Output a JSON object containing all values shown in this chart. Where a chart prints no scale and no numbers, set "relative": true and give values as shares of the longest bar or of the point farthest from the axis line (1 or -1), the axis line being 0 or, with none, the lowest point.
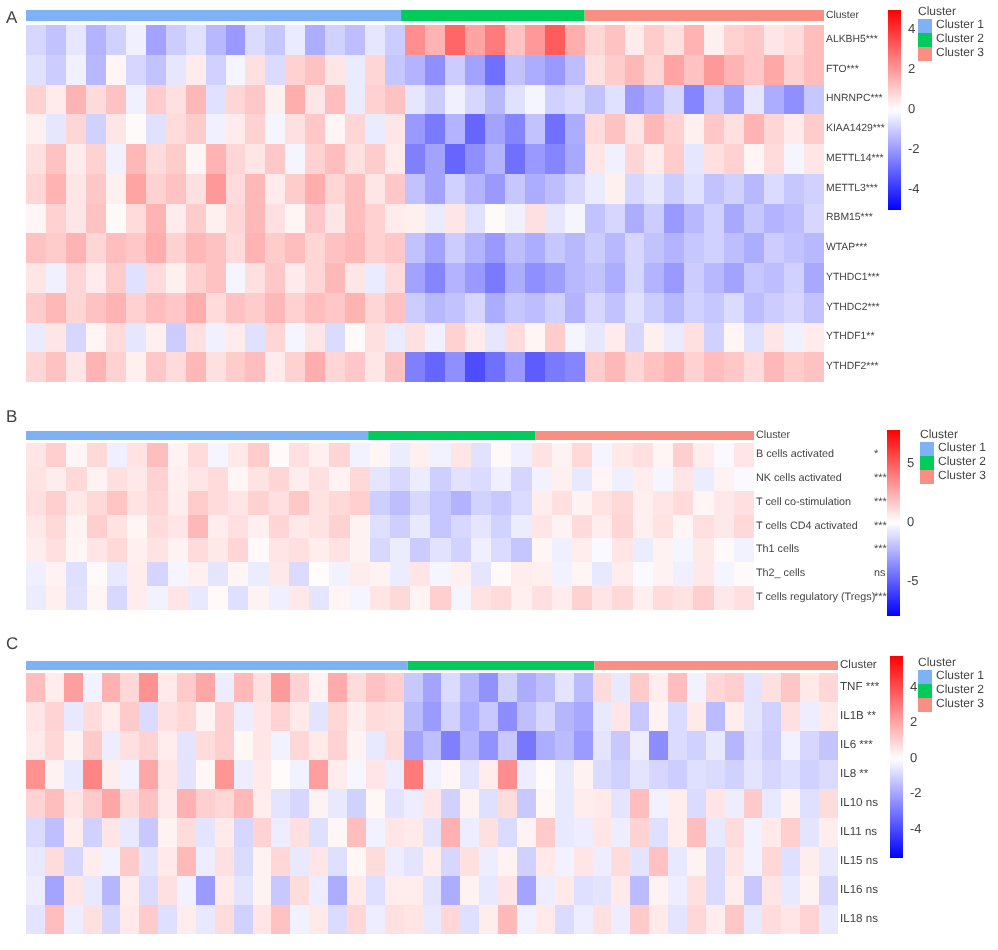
{
  "chart_data": [
    {
      "type": "bar",
      "orientation": "horizontal",
      "stacked": true,
      "relative": true,
      "title": "A",
      "categories": [
        "Cluster"
      ],
      "legend": "top right",
      "legend_title": "Cluster",
      "series": [
        {
          "name": "Cluster 1",
          "color": "#7fb1f5",
          "values": [
            0.47
          ]
        },
        {
          "name": "Cluster 2",
          "color": "#00cc5c",
          "values": [
            0.23
          ]
        },
        {
          "name": "Cluster 3",
          "color": "#f98f82",
          "values": [
            0.3
          ]
        }
      ]
    },
    {
      "type": "heatmap",
      "categories": [
        null,
        null,
        null,
        null,
        null,
        null,
        null,
        null,
        null,
        null,
        null,
        null,
        null,
        null,
        null,
        null,
        null,
        null,
        null,
        null,
        null,
        null,
        null,
        null,
        null,
        null,
        null,
        null,
        null,
        null,
        null,
        null,
        null,
        null,
        null,
        null,
        null,
        null,
        null,
        null
      ],
      "y_categories": [
        "ALKBH5***",
        "FTO***",
        "HNRNPC***",
        "KIAA1429***",
        "METTL14***",
        "METTL3***",
        "RBM15***",
        "WTAP***",
        "YTHDC1***",
        "YTHDC2***",
        "YTHDF1**",
        "YTHDF2***"
      ],
      "clim": [
        -5,
        5
      ],
      "cticks": [
        4,
        2,
        0,
        -2,
        -4
      ],
      "cells": [
        [
          -0.8,
          -1.2,
          -0.5,
          -1.5,
          -0.9,
          -0.3,
          -1.8,
          -1.0,
          -0.6,
          -1.4,
          -2.0,
          -0.7,
          -1.1,
          -0.4,
          -1.6,
          -0.9,
          -1.3,
          -0.5,
          -1.0,
          2.2,
          1.5,
          3.0,
          1.8,
          2.6,
          1.2,
          2.0,
          3.2,
          1.6,
          0.8,
          1.2,
          0.4,
          1.0,
          0.6,
          1.5,
          0.3,
          0.9,
          1.1,
          0.5,
          0.7,
          1.3
        ],
        [
          -0.6,
          -1.0,
          -0.3,
          -1.4,
          0.2,
          -0.8,
          -1.2,
          -0.5,
          0.4,
          -0.9,
          -0.2,
          0.6,
          -0.7,
          0.9,
          1.2,
          0.5,
          -0.4,
          0.8,
          -1.1,
          -1.5,
          -2.2,
          -1.0,
          -1.8,
          -2.8,
          -1.2,
          -1.6,
          -2.0,
          -1.3,
          0.6,
          1.0,
          1.4,
          0.8,
          1.8,
          1.2,
          2.0,
          1.5,
          1.1,
          1.7,
          0.9,
          1.3
        ],
        [
          0.9,
          0.4,
          1.5,
          0.7,
          1.2,
          -0.3,
          1.0,
          0.6,
          1.4,
          -0.6,
          0.8,
          1.1,
          0.3,
          1.6,
          0.5,
          1.3,
          -0.4,
          0.9,
          1.2,
          -0.5,
          -1.0,
          -0.3,
          -0.8,
          -1.4,
          -0.6,
          -0.2,
          -0.9,
          -0.7,
          -1.2,
          -0.6,
          -2.0,
          -1.5,
          -0.8,
          -2.4,
          -1.0,
          -1.8,
          -0.5,
          -1.6,
          -2.2,
          -1.1
        ],
        [
          0.3,
          -0.5,
          0.8,
          -0.9,
          0.5,
          0.1,
          -0.6,
          0.7,
          1.0,
          -0.3,
          0.4,
          0.9,
          -0.2,
          0.6,
          1.1,
          0.2,
          0.8,
          -0.4,
          0.5,
          -2.0,
          -2.6,
          -1.5,
          -3.0,
          -1.8,
          -2.4,
          -1.2,
          -2.8,
          -1.6,
          0.7,
          1.2,
          0.5,
          1.4,
          0.9,
          0.3,
          1.1,
          0.6,
          1.5,
          0.8,
          0.4,
          1.0
        ],
        [
          0.6,
          1.2,
          0.4,
          0.9,
          -0.3,
          1.4,
          0.7,
          1.0,
          0.2,
          1.5,
          0.8,
          0.5,
          1.1,
          -0.2,
          0.9,
          1.3,
          0.6,
          1.0,
          0.4,
          -2.5,
          -1.8,
          -3.0,
          -2.2,
          -1.5,
          -2.8,
          -2.0,
          -2.4,
          -1.7,
          0.5,
          -0.3,
          0.8,
          0.4,
          1.0,
          -0.5,
          0.6,
          0.9,
          0.2,
          0.7,
          -0.2,
          0.5
        ],
        [
          0.8,
          1.5,
          0.5,
          1.1,
          0.3,
          1.8,
          0.9,
          1.2,
          0.6,
          2.0,
          0.7,
          1.4,
          0.4,
          1.0,
          1.6,
          0.8,
          1.3,
          0.5,
          1.1,
          -1.2,
          -1.8,
          -0.9,
          -1.5,
          -2.0,
          -1.1,
          -1.6,
          -1.3,
          -0.8,
          -0.4,
          0.3,
          -0.8,
          -0.5,
          -1.0,
          -0.6,
          -1.2,
          -0.9,
          -1.4,
          -0.7,
          -1.1,
          -0.9
        ],
        [
          0.2,
          0.9,
          0.5,
          1.2,
          0.1,
          0.7,
          1.5,
          0.4,
          1.0,
          0.3,
          0.8,
          1.4,
          0.6,
          0.2,
          1.1,
          0.5,
          1.3,
          0.9,
          0.4,
          0.3,
          -0.4,
          0.5,
          -0.6,
          0.1,
          -0.3,
          0.6,
          -0.5,
          -0.2,
          -1.2,
          -0.8,
          -1.6,
          -1.0,
          -2.0,
          -1.4,
          -0.9,
          -1.7,
          -1.1,
          -1.5,
          -1.3,
          -0.8
        ],
        [
          1.2,
          1.0,
          1.5,
          0.8,
          1.3,
          1.1,
          1.6,
          0.9,
          1.4,
          1.2,
          0.7,
          1.5,
          1.0,
          1.3,
          0.8,
          1.2,
          1.4,
          0.9,
          1.1,
          -1.2,
          -1.8,
          -1.0,
          -1.5,
          -2.0,
          -1.3,
          -1.6,
          -1.1,
          -1.4,
          -1.0,
          -1.4,
          -0.8,
          -1.2,
          -1.5,
          -1.1,
          -0.9,
          -1.3,
          -1.6,
          -1.0,
          -1.2,
          -1.4
        ],
        [
          0.5,
          -0.3,
          0.8,
          0.4,
          1.0,
          -0.6,
          0.7,
          0.3,
          0.9,
          1.2,
          -0.2,
          0.6,
          1.1,
          0.4,
          0.8,
          1.4,
          0.5,
          -0.4,
          0.7,
          -1.8,
          -2.4,
          -1.5,
          -2.0,
          -2.6,
          -1.6,
          -2.2,
          -1.9,
          -1.4,
          -1.2,
          -1.6,
          -0.8,
          -1.5,
          -2.0,
          -1.0,
          -1.4,
          -1.8,
          -1.1,
          -1.3,
          -0.9,
          -1.7
        ],
        [
          1.0,
          1.4,
          0.8,
          1.2,
          1.5,
          0.9,
          1.3,
          1.1,
          1.6,
          0.7,
          1.2,
          1.0,
          1.4,
          0.9,
          1.3,
          1.1,
          1.5,
          0.8,
          1.2,
          -1.0,
          -1.4,
          -1.2,
          -0.8,
          -1.6,
          -1.1,
          -1.3,
          -0.9,
          -1.5,
          -0.8,
          -1.2,
          -0.6,
          -1.0,
          -1.4,
          -0.9,
          -1.1,
          -0.7,
          -1.3,
          -1.0,
          -0.8,
          -1.2
        ],
        [
          -0.4,
          0.5,
          -0.8,
          0.2,
          0.7,
          -0.5,
          0.3,
          -1.0,
          0.6,
          -0.3,
          0.4,
          -0.6,
          0.8,
          -0.2,
          0.5,
          -0.7,
          0.1,
          0.6,
          -0.4,
          0.6,
          -0.3,
          0.9,
          0.4,
          -0.5,
          0.7,
          0.2,
          1.0,
          -0.2,
          -0.5,
          0.4,
          -0.8,
          0.3,
          -0.4,
          0.6,
          -0.9,
          0.2,
          -0.6,
          0.5,
          -0.3,
          0.4
        ],
        [
          0.8,
          1.2,
          0.5,
          1.5,
          0.9,
          0.3,
          1.1,
          0.7,
          1.4,
          0.6,
          1.0,
          1.3,
          0.4,
          0.9,
          1.6,
          0.8,
          1.1,
          0.5,
          1.2,
          -2.5,
          -3.0,
          -2.2,
          -3.5,
          -2.8,
          -2.0,
          -3.2,
          -2.6,
          -2.4,
          1.0,
          1.4,
          0.8,
          1.2,
          1.5,
          0.9,
          1.3,
          1.1,
          0.7,
          1.4,
          1.0,
          1.2
        ]
      ]
    },
    {
      "type": "bar",
      "orientation": "horizontal",
      "stacked": true,
      "relative": true,
      "title": "B",
      "categories": [
        "Cluster"
      ],
      "legend": "top right",
      "legend_title": "Cluster",
      "series": [
        {
          "name": "Cluster 1",
          "color": "#7fb1f5",
          "values": [
            0.47
          ]
        },
        {
          "name": "Cluster 2",
          "color": "#00cc5c",
          "values": [
            0.23
          ]
        },
        {
          "name": "Cluster 3",
          "color": "#f98f82",
          "values": [
            0.3
          ]
        }
      ]
    },
    {
      "type": "heatmap",
      "categories": [
        null,
        null,
        null,
        null,
        null,
        null,
        null,
        null,
        null,
        null,
        null,
        null,
        null,
        null,
        null,
        null,
        null,
        null,
        null,
        null,
        null,
        null,
        null,
        null,
        null,
        null,
        null,
        null,
        null,
        null,
        null,
        null,
        null,
        null,
        null,
        null
      ],
      "y_categories": [
        "B cells activated",
        "NK cells activated",
        "T cell co-stimulation",
        "T cells CD4 activated",
        "Th1 cells",
        "Th2_ cells",
        "T cells regulatory (Tregs)"
      ],
      "y2_categories": [
        "*",
        "***",
        "***",
        "***",
        "***",
        "ns",
        "***"
      ],
      "clim": [
        -7.9,
        7.9
      ],
      "cticks": [
        5,
        0,
        -5
      ],
      "cells": [
        [
          0.8,
          1.5,
          0.3,
          1.2,
          -0.5,
          0.9,
          2.0,
          0.4,
          1.1,
          -0.3,
          0.7,
          1.6,
          0.2,
          1.0,
          0.5,
          1.3,
          -0.4,
          0.3,
          -0.6,
          0.5,
          -0.4,
          0.8,
          -0.9,
          0.2,
          -0.5,
          0.9,
          0.4,
          1.2,
          -0.3,
          0.7,
          1.0,
          0.3,
          1.5,
          0.6,
          -0.2,
          0.8
        ],
        [
          0.9,
          0.6,
          1.2,
          0.4,
          1.0,
          0.7,
          1.4,
          0.5,
          0.8,
          1.1,
          0.3,
          0.9,
          1.3,
          0.6,
          1.0,
          0.4,
          1.2,
          -0.8,
          -1.2,
          -0.6,
          -1.5,
          -0.9,
          -1.1,
          -0.5,
          -1.3,
          -0.4,
          0.5,
          -0.7,
          0.3,
          -0.5,
          0.6,
          -0.3,
          0.8,
          -0.6,
          0.4,
          -0.2
        ],
        [
          1.0,
          1.5,
          0.7,
          1.2,
          1.8,
          0.9,
          1.3,
          0.6,
          1.6,
          1.1,
          0.8,
          1.4,
          1.0,
          1.7,
          0.9,
          1.2,
          1.5,
          -1.5,
          -2.0,
          -1.2,
          -1.8,
          -2.4,
          -1.4,
          -1.7,
          -1.1,
          0.6,
          1.0,
          0.4,
          0.9,
          1.2,
          0.5,
          0.8,
          1.1,
          0.3,
          0.7,
          1.0
        ],
        [
          0.7,
          1.2,
          0.4,
          1.5,
          0.9,
          0.3,
          1.1,
          0.8,
          2.2,
          0.6,
          1.0,
          0.5,
          1.3,
          0.7,
          0.9,
          1.4,
          0.4,
          -1.0,
          -1.5,
          -0.7,
          -1.8,
          -1.2,
          -0.8,
          -1.4,
          -0.6,
          0.8,
          0.4,
          1.1,
          0.6,
          1.3,
          0.5,
          0.9,
          0.3,
          1.0,
          0.7,
          1.2
        ],
        [
          0.6,
          1.0,
          0.3,
          0.8,
          1.2,
          0.5,
          0.9,
          0.4,
          1.1,
          0.7,
          1.3,
          0.2,
          0.8,
          1.0,
          0.6,
          0.9,
          0.4,
          -1.2,
          -0.6,
          -1.6,
          -0.9,
          -1.4,
          -0.5,
          -1.1,
          -1.8,
          0.3,
          -0.5,
          0.6,
          -0.2,
          0.8,
          -0.6,
          0.4,
          -0.3,
          0.7,
          0.2,
          -0.4
        ],
        [
          -0.5,
          0.4,
          -1.0,
          0.2,
          -0.7,
          0.6,
          -1.3,
          -0.3,
          0.5,
          -0.8,
          0.3,
          -0.6,
          0.7,
          -1.1,
          0.1,
          -0.4,
          0.6,
          0.4,
          -0.6,
          0.8,
          -0.3,
          0.5,
          -0.8,
          0.2,
          0.6,
          0.5,
          -0.4,
          0.3,
          -0.7,
          0.6,
          -0.2,
          0.4,
          -0.5,
          0.7,
          -0.3,
          0.2
        ],
        [
          -0.6,
          0.5,
          -0.9,
          0.3,
          -1.2,
          0.6,
          -0.4,
          0.8,
          -0.7,
          0.2,
          -1.0,
          0.4,
          -0.5,
          0.7,
          -0.8,
          0.3,
          -0.3,
          0.8,
          1.2,
          0.4,
          1.5,
          -0.3,
          0.9,
          1.1,
          0.5,
          1.0,
          0.6,
          1.4,
          0.8,
          1.2,
          0.5,
          1.1,
          0.9,
          1.5,
          0.7,
          1.0
        ]
      ]
    },
    {
      "type": "bar",
      "orientation": "horizontal",
      "stacked": true,
      "relative": true,
      "title": "C",
      "categories": [
        "Cluster"
      ],
      "legend": "top right",
      "legend_title": "Cluster",
      "series": [
        {
          "name": "Cluster 1",
          "color": "#7fb1f5",
          "values": [
            0.47
          ]
        },
        {
          "name": "Cluster 2",
          "color": "#00cc5c",
          "values": [
            0.23
          ]
        },
        {
          "name": "Cluster 3",
          "color": "#f98f82",
          "values": [
            0.3
          ]
        }
      ]
    },
    {
      "type": "heatmap",
      "categories": [
        null,
        null,
        null,
        null,
        null,
        null,
        null,
        null,
        null,
        null,
        null,
        null,
        null,
        null,
        null,
        null,
        null,
        null,
        null,
        null,
        null,
        null,
        null,
        null,
        null,
        null,
        null,
        null,
        null,
        null,
        null,
        null,
        null,
        null,
        null,
        null,
        null,
        null,
        null,
        null,
        null,
        null,
        null
      ],
      "y_categories": [
        "TNF ***",
        "IL1B **",
        "IL6 ***",
        "IL8 **",
        "IL10 ns",
        "IL11 ns",
        "IL15 ns",
        "IL16 ns",
        "IL18 ns"
      ],
      "clim": [
        -5.6,
        5.8
      ],
      "cticks": [
        4,
        2,
        0,
        -2,
        -4
      ],
      "cells": [
        [
          1.5,
          0.4,
          2.2,
          -0.3,
          1.8,
          0.9,
          2.5,
          0.5,
          1.2,
          2.0,
          -0.4,
          1.6,
          0.7,
          2.3,
          1.0,
          0.3,
          1.9,
          0.8,
          1.4,
          1.1,
          -1.2,
          -2.0,
          -0.8,
          -1.6,
          -2.4,
          -1.0,
          -1.8,
          -1.4,
          -0.6,
          -1.5,
          0.8,
          -0.5,
          1.2,
          0.4,
          1.5,
          -0.3,
          0.9,
          1.1,
          -0.6,
          0.7,
          1.3,
          0.5,
          0.9
        ],
        [
          0.6,
          1.0,
          -0.5,
          0.8,
          0.4,
          1.2,
          -0.8,
          0.7,
          0.9,
          0.3,
          1.1,
          -0.4,
          0.6,
          1.0,
          0.5,
          -0.6,
          0.9,
          0.4,
          0.8,
          0.7,
          -1.5,
          -2.2,
          -1.0,
          -1.8,
          -1.2,
          -2.5,
          -1.4,
          -0.9,
          -1.6,
          -1.9,
          -0.5,
          0.6,
          -1.2,
          0.3,
          -0.8,
          0.5,
          -1.5,
          0.4,
          -0.6,
          -1.0,
          0.7,
          -0.4,
          0.5
        ],
        [
          0.5,
          0.9,
          0.3,
          1.2,
          -0.4,
          0.7,
          1.0,
          0.4,
          -0.6,
          0.8,
          1.1,
          0.2,
          0.6,
          -0.3,
          0.9,
          0.5,
          1.0,
          0.3,
          -0.5,
          0.8,
          -2.0,
          -1.4,
          -2.8,
          -1.6,
          -2.4,
          -1.2,
          -3.0,
          -1.8,
          -1.5,
          -2.2,
          -0.6,
          -1.2,
          -0.4,
          -2.5,
          -0.8,
          -1.0,
          -0.5,
          -1.6,
          -0.7,
          -1.1,
          -0.3,
          -0.9,
          -1.3
        ],
        [
          2.5,
          0.3,
          -0.5,
          2.8,
          0.4,
          -0.3,
          2.0,
          0.6,
          -0.6,
          0.2,
          2.4,
          -0.4,
          0.5,
          0.1,
          -0.3,
          2.2,
          0.4,
          -0.2,
          0.6,
          -0.4,
          3.0,
          -0.3,
          0.2,
          -0.6,
          0.4,
          2.6,
          -0.4,
          0.1,
          -0.5,
          0.3,
          -0.8,
          -1.0,
          -0.6,
          -0.9,
          -1.1,
          -0.7,
          -0.8,
          -1.0,
          -0.6,
          -0.9,
          -0.7,
          -1.0,
          -0.8
        ],
        [
          1.0,
          1.5,
          0.6,
          1.2,
          2.0,
          0.8,
          1.4,
          0.5,
          1.8,
          1.1,
          0.9,
          1.6,
          0.4,
          -0.6,
          -0.9,
          0.3,
          -0.5,
          -1.0,
          0.2,
          -0.6,
          -0.4,
          0.6,
          -1.0,
          0.3,
          -0.7,
          0.8,
          -1.2,
          0.2,
          -0.5,
          0.4,
          0.5,
          -0.6,
          1.5,
          -0.3,
          0.4,
          -0.8,
          0.6,
          -0.4,
          1.2,
          -0.5,
          0.3,
          -0.7,
          0.8
        ],
        [
          -0.8,
          -1.4,
          0.4,
          -1.0,
          0.6,
          -0.5,
          -1.2,
          0.3,
          0.8,
          -0.6,
          0.5,
          -0.9,
          1.0,
          -0.4,
          0.7,
          -0.7,
          0.2,
          1.5,
          -0.3,
          0.6,
          0.5,
          -0.6,
          1.8,
          -0.4,
          0.7,
          -0.8,
          0.3,
          1.2,
          -0.5,
          -0.4,
          0.6,
          -0.4,
          1.0,
          -0.7,
          0.4,
          1.5,
          -0.5,
          0.8,
          -0.3,
          0.5,
          1.1,
          -0.6,
          0.4
        ],
        [
          -0.5,
          0.8,
          -0.9,
          0.4,
          -0.3,
          1.2,
          -0.6,
          0.5,
          1.6,
          -0.4,
          0.7,
          -0.8,
          0.3,
          0.9,
          -0.5,
          0.6,
          -0.7,
          0.2,
          0.8,
          -0.4,
          -0.6,
          0.4,
          -0.9,
          0.7,
          -0.4,
          0.3,
          -1.0,
          0.5,
          -0.3,
          0.6,
          -0.4,
          0.8,
          -0.6,
          1.4,
          -0.5,
          0.3,
          -0.8,
          0.6,
          -0.3,
          0.9,
          -0.7,
          0.4,
          -0.5
        ],
        [
          -0.4,
          -2.0,
          0.6,
          -0.5,
          -1.6,
          0.4,
          -0.8,
          0.7,
          -0.3,
          -2.2,
          0.5,
          -0.6,
          0.3,
          -1.2,
          0.8,
          -0.4,
          -1.8,
          0.5,
          -0.7,
          0.4,
          0.4,
          -0.6,
          -1.8,
          0.3,
          -0.5,
          0.6,
          -2.0,
          -0.4,
          0.5,
          -0.7,
          -0.6,
          0.5,
          -1.5,
          0.3,
          -0.4,
          0.7,
          -0.8,
          0.4,
          -1.2,
          0.6,
          -0.5,
          0.3,
          -0.9
        ],
        [
          -0.6,
          1.5,
          -0.4,
          0.7,
          -0.9,
          0.5,
          1.2,
          -0.7,
          0.4,
          -0.5,
          0.8,
          -1.0,
          0.6,
          1.4,
          -0.3,
          0.5,
          -0.8,
          0.9,
          -0.4,
          0.7,
          0.6,
          -0.5,
          0.9,
          -0.7,
          0.4,
          1.6,
          -0.3,
          0.5,
          -0.8,
          -0.4,
          0.7,
          -0.4,
          1.2,
          0.5,
          -0.6,
          0.9,
          0.4,
          1.3,
          -0.5,
          0.8,
          0.6,
          1.0,
          -0.5
        ]
      ]
    }
  ]
}
